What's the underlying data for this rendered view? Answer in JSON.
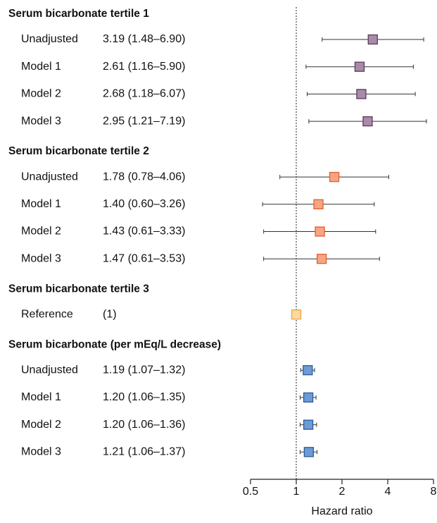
{
  "chart_data": {
    "type": "forest",
    "x_label": "Hazard ratio",
    "log_x": true,
    "xlim": [
      0.5,
      8
    ],
    "xticks": [
      0.5,
      1,
      2,
      4,
      8
    ],
    "reference_line": 1,
    "groups": [
      {
        "title": "Serum bicarbonate tertile 1",
        "color": "#a98aa9",
        "edge": "#5b3a5b",
        "rows": [
          {
            "label": "Unadjusted",
            "value_label": "3.19 (1.48–6.90)",
            "value": 3.19,
            "lower": 1.48,
            "upper": 6.9
          },
          {
            "label": "Model 1",
            "value_label": "2.61 (1.16–5.90)",
            "value": 2.61,
            "lower": 1.16,
            "upper": 5.9
          },
          {
            "label": "Model 2",
            "value_label": "2.68 (1.18–6.07)",
            "value": 2.68,
            "lower": 1.18,
            "upper": 6.07
          },
          {
            "label": "Model 3",
            "value_label": "2.95 (1.21–7.19)",
            "value": 2.95,
            "lower": 1.21,
            "upper": 7.19
          }
        ]
      },
      {
        "title": "Serum bicarbonate tertile 2",
        "color": "#f7a582",
        "edge": "#e0602f",
        "rows": [
          {
            "label": "Unadjusted",
            "value_label": "1.78 (0.78–4.06)",
            "value": 1.78,
            "lower": 0.78,
            "upper": 4.06
          },
          {
            "label": "Model 1",
            "value_label": "1.40 (0.60–3.26)",
            "value": 1.4,
            "lower": 0.6,
            "upper": 3.26
          },
          {
            "label": "Model 2",
            "value_label": "1.43 (0.61–3.33)",
            "value": 1.43,
            "lower": 0.61,
            "upper": 3.33
          },
          {
            "label": "Model 3",
            "value_label": "1.47 (0.61–3.53)",
            "value": 1.47,
            "lower": 0.61,
            "upper": 3.53
          }
        ]
      },
      {
        "title": "Serum bicarbonate tertile 3",
        "color": "#fdd9a0",
        "edge": "#e9a54a",
        "rows": [
          {
            "label": "Reference",
            "value_label": "(1)",
            "value": 1
          }
        ]
      },
      {
        "title": "Serum bicarbonate (per mEq/L decrease)",
        "color": "#6d9bd6",
        "edge": "#2b5a98",
        "rows": [
          {
            "label": "Unadjusted",
            "value_label": "1.19 (1.07–1.32)",
            "value": 1.19,
            "lower": 1.07,
            "upper": 1.32
          },
          {
            "label": "Model 1",
            "value_label": "1.20 (1.06–1.35)",
            "value": 1.2,
            "lower": 1.06,
            "upper": 1.35
          },
          {
            "label": "Model 2",
            "value_label": "1.20 (1.06–1.36)",
            "value": 1.2,
            "lower": 1.06,
            "upper": 1.36
          },
          {
            "label": "Model 3",
            "value_label": "1.21 (1.06–1.37)",
            "value": 1.21,
            "lower": 1.06,
            "upper": 1.37
          }
        ]
      }
    ]
  }
}
